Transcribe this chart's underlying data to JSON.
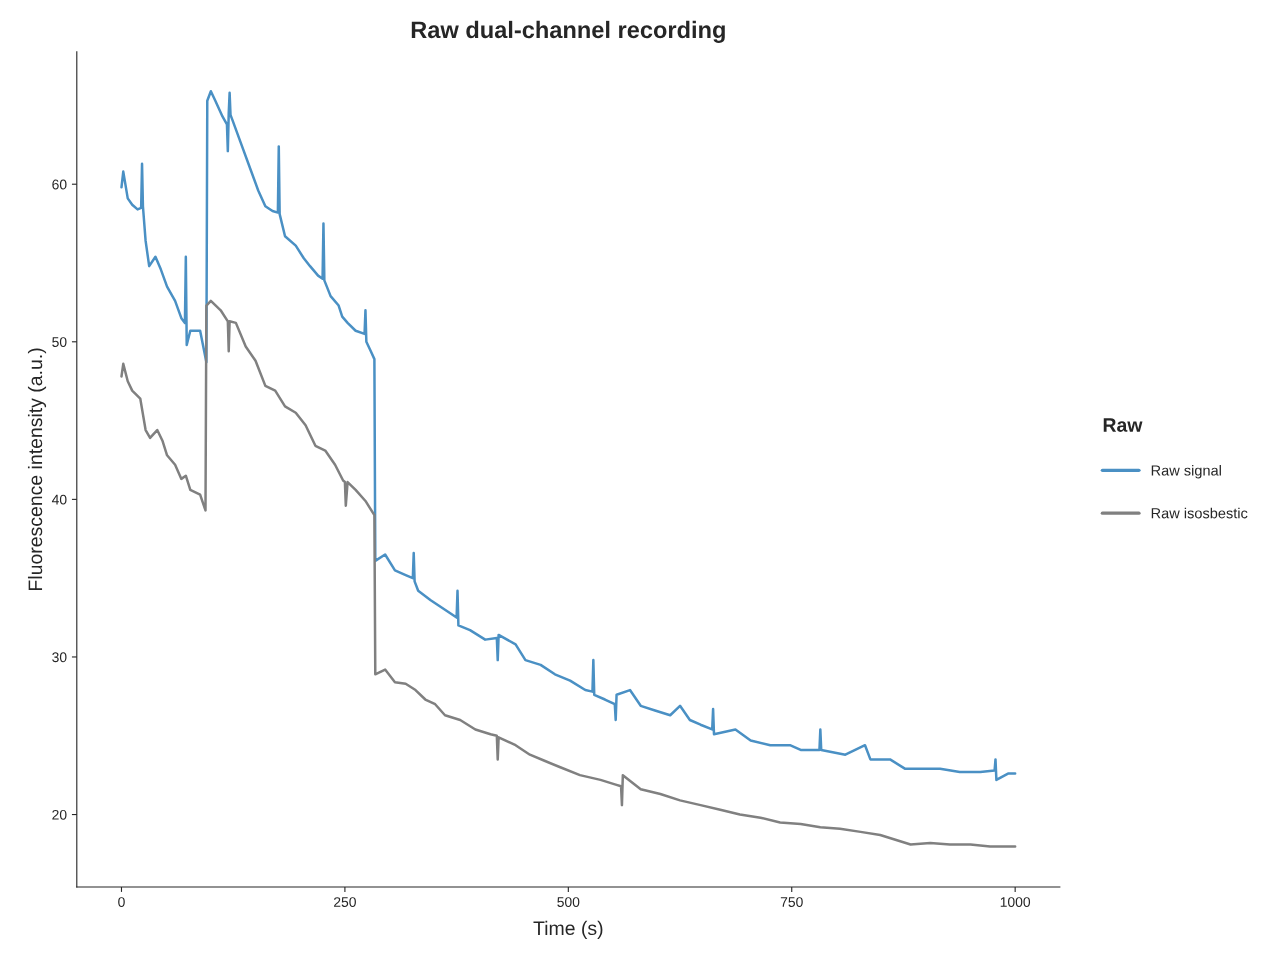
{
  "chart_data": {
    "type": "line",
    "title": "Raw dual-channel recording",
    "xlabel": "Time (s)",
    "ylabel": "Fluorescence intensity (a.u.)",
    "legend_title": "Raw",
    "legend": "right",
    "grid": false,
    "marker": "none",
    "line_style": "solid",
    "xlim": [
      -50,
      1050
    ],
    "ylim": [
      15.4,
      68.4
    ],
    "xticks": [
      0,
      250,
      500,
      750,
      1000
    ],
    "yticks": [
      20,
      30,
      40,
      50,
      60
    ],
    "series": [
      {
        "name": "Raw signal",
        "color": "#4a90c4",
        "x": [
          0,
          2,
          7,
          12,
          18,
          22,
          23,
          24,
          27,
          31,
          38,
          44,
          51,
          60,
          67,
          71,
          72,
          73,
          77,
          88,
          95,
          96,
          100,
          105,
          113,
          118,
          119,
          120,
          121,
          122,
          124,
          133,
          144,
          153,
          161,
          169,
          175,
          176,
          177,
          183,
          195,
          204,
          211,
          220,
          225,
          226,
          227,
          234,
          243,
          247,
          253,
          262,
          272,
          273,
          274,
          279,
          283,
          284,
          295,
          306,
          318,
          326,
          327,
          328,
          332,
          346,
          362,
          375,
          376,
          377,
          390,
          407,
          420,
          421,
          422,
          441,
          452,
          469,
          485,
          502,
          519,
          527,
          528,
          529,
          541,
          552,
          553,
          554,
          569,
          581,
          597,
          614,
          625,
          636,
          648,
          661,
          662,
          663,
          687,
          704,
          726,
          748,
          760,
          781,
          782,
          783,
          810,
          832,
          838,
          860,
          877,
          894,
          916,
          938,
          961,
          977,
          978,
          979,
          992,
          1000
        ],
        "values": [
          59.8,
          60.8,
          59.1,
          58.7,
          58.4,
          58.5,
          61.3,
          58.6,
          56.4,
          54.8,
          55.4,
          54.6,
          53.5,
          52.6,
          51.5,
          51.2,
          55.4,
          49.8,
          50.7,
          50.7,
          48.7,
          65.3,
          65.9,
          65.3,
          64.3,
          63.8,
          62.1,
          64.5,
          65.8,
          64.4,
          64.1,
          62.7,
          61.0,
          59.6,
          58.6,
          58.3,
          58.2,
          62.4,
          58.1,
          56.7,
          56.1,
          55.3,
          54.8,
          54.2,
          54.0,
          57.5,
          53.9,
          52.9,
          52.3,
          51.6,
          51.2,
          50.7,
          50.5,
          52.0,
          50.0,
          49.4,
          48.9,
          36.1,
          36.5,
          35.5,
          35.2,
          35.0,
          36.6,
          34.8,
          34.2,
          33.6,
          33.0,
          32.5,
          34.2,
          32.0,
          31.7,
          31.1,
          31.2,
          29.8,
          31.4,
          30.8,
          29.8,
          29.5,
          28.9,
          28.5,
          27.9,
          27.8,
          29.8,
          27.6,
          27.3,
          27.0,
          26.0,
          27.6,
          27.9,
          26.9,
          26.6,
          26.3,
          26.9,
          26.0,
          25.7,
          25.4,
          26.7,
          25.1,
          25.4,
          24.7,
          24.4,
          24.4,
          24.1,
          24.1,
          25.4,
          24.1,
          23.8,
          24.4,
          23.5,
          23.5,
          22.9,
          22.9,
          22.9,
          22.7,
          22.7,
          22.8,
          23.5,
          22.2,
          22.6,
          22.6
        ]
      },
      {
        "name": "Raw isosbestic",
        "color": "#808080",
        "x": [
          0,
          2,
          7,
          12,
          21,
          27,
          32,
          40,
          46,
          51,
          60,
          67,
          72,
          77,
          88,
          94,
          95,
          100,
          111,
          119,
          120,
          121,
          128,
          139,
          150,
          161,
          172,
          183,
          195,
          206,
          217,
          228,
          239,
          248,
          250,
          251,
          253,
          262,
          273,
          283,
          284,
          295,
          306,
          318,
          329,
          340,
          351,
          362,
          379,
          396,
          413,
          420,
          421,
          422,
          441,
          457,
          474,
          491,
          513,
          536,
          553,
          559,
          560,
          561,
          581,
          603,
          625,
          648,
          670,
          692,
          715,
          737,
          760,
          782,
          804,
          827,
          849,
          866,
          883,
          905,
          927,
          950,
          972,
          1000
        ],
        "values": [
          47.8,
          48.6,
          47.5,
          46.9,
          46.4,
          44.4,
          43.9,
          44.4,
          43.7,
          42.8,
          42.2,
          41.3,
          41.5,
          40.6,
          40.3,
          39.3,
          52.3,
          52.6,
          52.0,
          51.3,
          49.4,
          51.3,
          51.2,
          49.7,
          48.8,
          47.2,
          46.9,
          45.9,
          45.5,
          44.7,
          43.4,
          43.1,
          42.2,
          41.2,
          41.1,
          39.6,
          41.1,
          40.6,
          39.9,
          39.0,
          28.9,
          29.2,
          28.4,
          28.3,
          27.9,
          27.3,
          27.0,
          26.3,
          26.0,
          25.4,
          25.1,
          25.0,
          23.5,
          24.9,
          24.4,
          23.8,
          23.4,
          23.0,
          22.5,
          22.2,
          21.9,
          21.8,
          20.6,
          22.5,
          21.6,
          21.3,
          20.9,
          20.6,
          20.3,
          20.0,
          19.8,
          19.5,
          19.4,
          19.2,
          19.1,
          18.9,
          18.7,
          18.4,
          18.1,
          18.2,
          18.1,
          18.1,
          17.97,
          17.97
        ]
      }
    ]
  }
}
